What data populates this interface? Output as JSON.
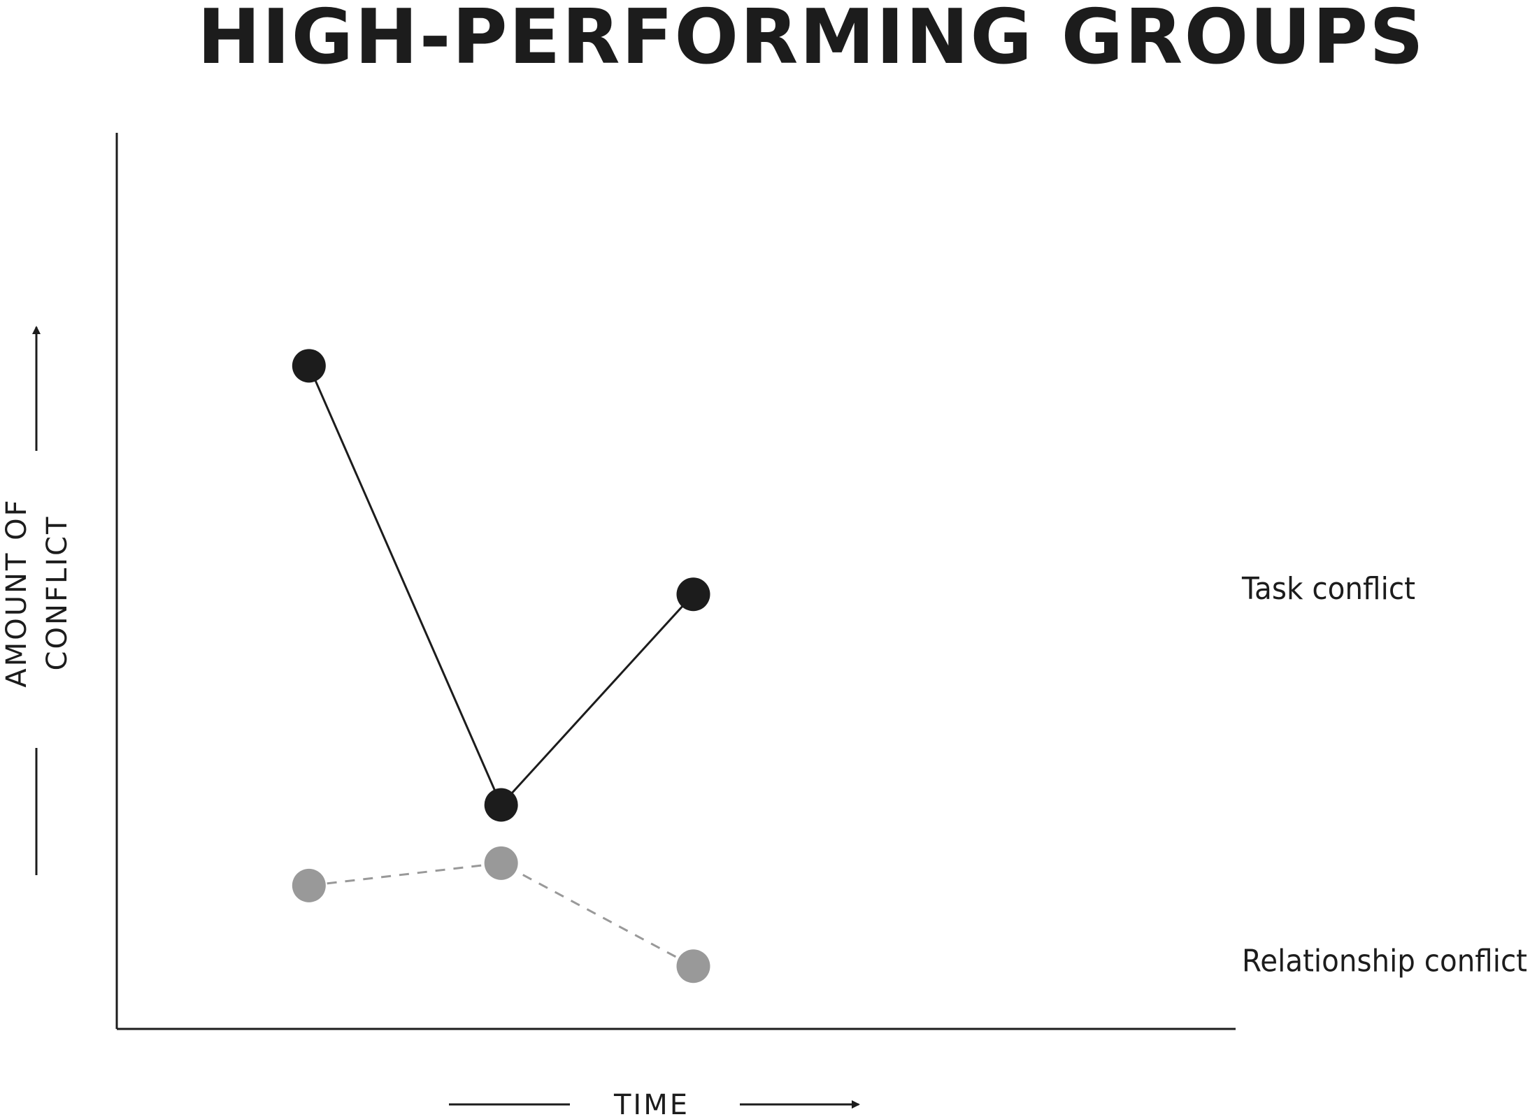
{
  "chart_data": {
    "type": "line",
    "title": "HIGH-PERFORMING GROUPS",
    "xlabel": "TIME",
    "ylabel_lines": [
      "AMOUNT OF",
      "CONFLICT"
    ],
    "x": [
      1,
      2,
      3
    ],
    "xlim": [
      0,
      7.35
    ],
    "ylim": [
      0,
      10
    ],
    "grid": false,
    "legend": "inline-right",
    "series": [
      {
        "name": "Task conflict",
        "values": [
          7.4,
          2.5,
          4.85
        ],
        "color": "#1c1c1c",
        "line_style": "solid"
      },
      {
        "name": "Relationship conflict",
        "values": [
          1.6,
          1.85,
          0.7
        ],
        "color": "#999999",
        "line_style": "dashed"
      }
    ]
  }
}
